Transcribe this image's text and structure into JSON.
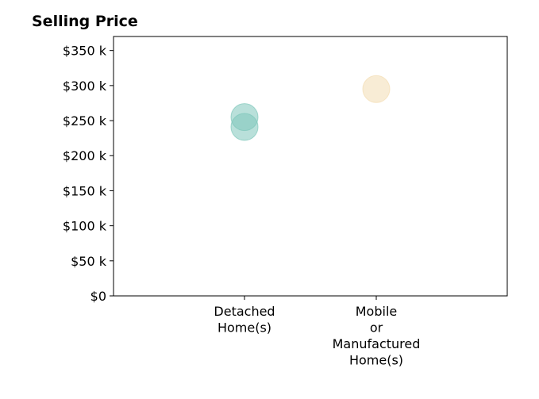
{
  "chart_data": {
    "type": "scatter",
    "title": "Selling Price",
    "xlabel": "",
    "ylabel": "",
    "categories": [
      [
        "Detached",
        "Home(s)"
      ],
      [
        "Mobile",
        "or",
        "Manufactured",
        "Home(s)"
      ]
    ],
    "ylim": [
      0,
      370000
    ],
    "yticks": [
      0,
      50000,
      100000,
      150000,
      200000,
      250000,
      300000,
      350000
    ],
    "ytick_labels": [
      "$0",
      "$50 k",
      "$100 k",
      "$150 k",
      "$200 k",
      "$250 k",
      "$300 k",
      "$350 k"
    ],
    "points": [
      {
        "category_index": 0,
        "value": 255000,
        "color": "#7fc7bb"
      },
      {
        "category_index": 0,
        "value": 241000,
        "color": "#7fc7bb"
      },
      {
        "category_index": 1,
        "value": 295000,
        "color": "#f3ddb2"
      }
    ],
    "grid": false,
    "legend": "none"
  }
}
